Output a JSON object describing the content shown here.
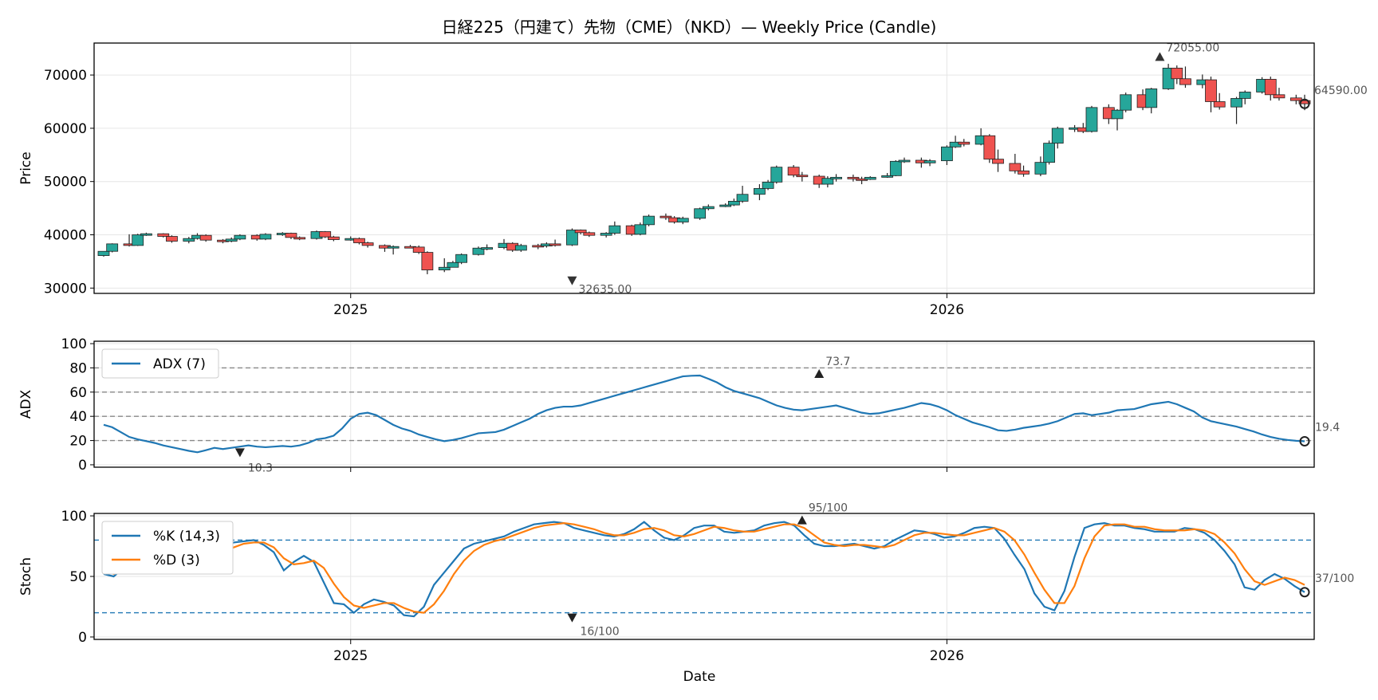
{
  "figure": {
    "title": "日経225（円建て）先物（CME）（NKD）— Weekly Price (Candle)",
    "xlabel": "Date",
    "colors": {
      "up": "#26a69a",
      "down": "#ef5350",
      "adx": "#1f77b4",
      "k": "#1f77b4",
      "d": "#ff7f0e",
      "grid": "#e6e6e6",
      "ref": "#888888"
    }
  },
  "chart_data": [
    {
      "type": "candlestick",
      "name": "price",
      "ylabel": "Price",
      "ylim": [
        29000,
        76000
      ],
      "yticks": [
        30000,
        40000,
        50000,
        60000,
        70000
      ],
      "x_ticks": [
        {
          "index": 29,
          "label": "2025"
        },
        {
          "index": 99,
          "label": "2026"
        }
      ],
      "annotations": {
        "high": {
          "index": 124,
          "value": 72055,
          "label": "72055.00"
        },
        "low": {
          "index": 55,
          "value": 32635,
          "label": "32635.00"
        },
        "last": {
          "index": 141,
          "value": 64590,
          "label": "64590.00"
        }
      },
      "close": [
        36214,
        36375,
        38200,
        38342,
        38285,
        40081,
        40169,
        40290,
        40219,
        40130,
        40077,
        40042,
        39849,
        39548,
        39409,
        38995,
        39108,
        39128,
        39068,
        39070,
        39210,
        39219,
        39275,
        39243,
        39184,
        39315,
        39415,
        39510,
        39611,
        39726,
        39845,
        39961,
        39844,
        39569,
        39293,
        38997,
        38712,
        38440,
        38179,
        37962,
        37813,
        37828,
        37979,
        38265,
        38603,
        38806,
        38754,
        38401,
        37864,
        37336,
        36910,
        36677,
        36614,
        36566,
        35913,
        34281,
        32635,
        34106,
        34749,
        35800,
        36845,
        37599,
        38041,
        38174,
        38102,
        38058,
        38193,
        38406,
        38551,
        38713,
        38933,
        39295,
        39727,
        40114,
        40398,
        40603,
        40800,
        41103,
        41547,
        42155,
        42835,
        43409,
        43754,
        43951,
        44130,
        44410,
        44836,
        45456,
        46159,
        46820,
        47480,
        48113,
        48881,
        49817,
        50707,
        51357,
        51628,
        51473,
        50944,
        50360,
        50021,
        49973,
        50135,
        50369,
        50625,
        50928,
        51281,
        51843,
        52537,
        53351,
        54249,
        54934,
        55430,
        55862,
        56413,
        57019,
        57466,
        57583,
        57312,
        56728,
        55910,
        55046,
        54344,
        53912,
        53718,
        53781,
        54051,
        54627,
        55550,
        56777,
        58039,
        59139,
        60188,
        61223,
        62294,
        63521,
        64891,
        66276,
        67651,
        69008,
        70363,
        71642,
        72055,
        71404,
        69980,
        68321,
        66909,
        65855,
        65176,
        64874,
        64895,
        65145,
        65473,
        65764,
        65907,
        65845,
        65542,
        65071,
        64590
      ],
      "candles": [
        [
          36.1,
          36.9,
          36.9,
          35.9
        ],
        [
          36.9,
          38.3,
          38.4,
          36.7
        ],
        [
          38.3,
          38.0,
          40.1,
          37.8
        ],
        [
          38.0,
          40.0,
          40.2,
          37.9
        ],
        [
          40.0,
          40.2,
          40.4,
          39.8
        ],
        [
          40.2,
          39.7,
          40.3,
          39.5
        ],
        [
          39.7,
          38.8,
          39.9,
          38.5
        ],
        [
          38.8,
          39.3,
          39.6,
          38.4
        ],
        [
          39.3,
          39.9,
          40.3,
          39.1
        ],
        [
          39.9,
          39.0,
          40.1,
          38.7
        ],
        [
          39.0,
          38.8,
          39.2,
          38.4
        ],
        [
          38.8,
          39.2,
          39.5,
          38.6
        ],
        [
          39.2,
          39.9,
          40.1,
          39.0
        ],
        [
          39.9,
          39.2,
          40.1,
          38.9
        ],
        [
          39.2,
          40.1,
          40.3,
          39.0
        ],
        [
          40.1,
          40.3,
          40.5,
          39.8
        ],
        [
          40.3,
          39.5,
          40.4,
          39.2
        ],
        [
          39.5,
          39.3,
          39.7,
          39.0
        ],
        [
          39.3,
          40.6,
          40.8,
          39.1
        ],
        [
          40.6,
          39.6,
          40.7,
          39.4
        ],
        [
          39.6,
          39.1,
          39.8,
          38.8
        ],
        [
          39.1,
          39.3,
          39.7,
          38.9
        ],
        [
          39.3,
          38.5,
          39.5,
          38.2
        ],
        [
          38.5,
          38.0,
          38.7,
          37.6
        ],
        [
          38.0,
          37.5,
          38.2,
          36.8
        ],
        [
          37.5,
          37.8,
          38.0,
          36.3
        ],
        [
          37.8,
          37.7,
          38.1,
          37.5
        ],
        [
          37.7,
          36.7,
          38.0,
          36.4
        ],
        [
          36.7,
          33.4,
          36.9,
          32.6
        ],
        [
          33.4,
          33.9,
          35.6,
          33.0
        ],
        [
          33.9,
          34.8,
          35.1,
          34.6
        ],
        [
          34.8,
          36.3,
          36.5,
          34.5
        ],
        [
          36.3,
          37.5,
          37.8,
          36.1
        ],
        [
          37.5,
          37.6,
          38.2,
          37.1
        ],
        [
          37.6,
          38.4,
          39.2,
          37.3
        ],
        [
          38.4,
          37.1,
          38.6,
          36.8
        ],
        [
          37.1,
          38.0,
          38.3,
          36.8
        ],
        [
          38.0,
          37.9,
          38.3,
          37.3
        ],
        [
          37.9,
          38.3,
          38.6,
          37.6
        ],
        [
          38.3,
          38.1,
          39.1,
          37.8
        ],
        [
          38.1,
          40.9,
          41.2,
          37.9
        ],
        [
          40.9,
          40.4,
          41.0,
          40.1
        ],
        [
          40.4,
          39.9,
          40.6,
          39.6
        ],
        [
          39.9,
          40.3,
          40.5,
          39.5
        ],
        [
          40.3,
          41.7,
          42.5,
          40.0
        ],
        [
          41.7,
          40.1,
          41.9,
          39.8
        ],
        [
          40.1,
          41.9,
          42.3,
          39.9
        ],
        [
          41.9,
          43.5,
          43.8,
          41.6
        ],
        [
          43.5,
          43.2,
          44.0,
          42.8
        ],
        [
          43.2,
          42.4,
          43.5,
          42.1
        ],
        [
          42.4,
          43.1,
          43.4,
          42.0
        ],
        [
          43.1,
          44.9,
          45.1,
          42.8
        ],
        [
          44.9,
          45.3,
          45.7,
          44.6
        ],
        [
          45.3,
          45.6,
          45.9,
          45.2
        ],
        [
          45.6,
          46.3,
          46.8,
          45.4
        ],
        [
          46.3,
          47.6,
          49.2,
          46.0
        ],
        [
          47.6,
          48.7,
          49.5,
          46.5
        ],
        [
          48.7,
          49.9,
          50.3,
          48.4
        ],
        [
          49.9,
          52.7,
          53.0,
          49.6
        ],
        [
          52.7,
          51.2,
          53.1,
          50.8
        ],
        [
          51.2,
          51.0,
          51.8,
          50.0
        ],
        [
          51.0,
          49.5,
          51.3,
          48.8
        ],
        [
          49.5,
          50.6,
          51.0,
          48.9
        ],
        [
          50.6,
          50.8,
          51.4,
          50.0
        ],
        [
          50.8,
          50.5,
          51.3,
          50.0
        ],
        [
          50.5,
          50.4,
          50.9,
          49.5
        ],
        [
          50.4,
          50.8,
          51.0,
          50.3
        ],
        [
          50.8,
          51.1,
          51.6,
          50.7
        ],
        [
          51.1,
          53.8,
          54.0,
          51.0
        ],
        [
          53.8,
          54.0,
          54.5,
          53.5
        ],
        [
          54.0,
          53.5,
          54.5,
          52.6
        ],
        [
          53.5,
          53.9,
          54.2,
          52.9
        ],
        [
          53.9,
          56.5,
          56.8,
          53.1
        ],
        [
          56.5,
          57.4,
          58.6,
          56.3
        ],
        [
          57.4,
          57.0,
          58.0,
          56.6
        ],
        [
          57.0,
          58.6,
          60.0,
          56.8
        ],
        [
          58.6,
          54.2,
          58.9,
          53.5
        ],
        [
          54.2,
          53.4,
          56.0,
          51.8
        ],
        [
          53.4,
          52.0,
          55.2,
          51.5
        ],
        [
          52.0,
          51.4,
          53.0,
          50.9
        ],
        [
          51.4,
          53.6,
          54.7,
          51.0
        ],
        [
          53.6,
          57.2,
          57.7,
          53.2
        ],
        [
          57.2,
          60.0,
          60.3,
          56.2
        ],
        [
          60.0,
          60.1,
          60.6,
          59.3
        ],
        [
          60.1,
          59.4,
          61.0,
          59.1
        ],
        [
          59.4,
          63.9,
          64.2,
          59.2
        ],
        [
          63.9,
          61.8,
          64.5,
          60.8
        ],
        [
          61.8,
          63.4,
          63.6,
          59.6
        ],
        [
          63.4,
          66.3,
          66.7,
          63.0
        ],
        [
          66.3,
          63.9,
          67.3,
          63.4
        ],
        [
          63.9,
          67.4,
          67.6,
          62.8
        ],
        [
          67.4,
          71.3,
          72.1,
          67.2
        ],
        [
          71.3,
          69.3,
          71.8,
          68.3
        ],
        [
          69.3,
          68.2,
          71.6,
          67.6
        ],
        [
          68.2,
          69.1,
          70.1,
          67.5
        ],
        [
          69.1,
          65.0,
          69.7,
          63.0
        ],
        [
          65.0,
          64.0,
          66.6,
          63.5
        ],
        [
          64.0,
          65.6,
          65.9,
          60.8
        ],
        [
          65.6,
          66.8,
          67.1,
          64.5
        ],
        [
          66.8,
          69.2,
          69.6,
          66.5
        ],
        [
          69.2,
          66.3,
          69.7,
          65.2
        ],
        [
          66.3,
          65.7,
          67.6,
          65.2
        ],
        [
          65.7,
          65.2,
          66.3,
          64.5
        ],
        [
          65.2,
          64.6,
          66.3,
          63.4
        ]
      ]
    },
    {
      "type": "line",
      "name": "adx",
      "ylabel": "ADX",
      "ylim": [
        -2,
        102
      ],
      "yticks": [
        0,
        20,
        40,
        60,
        80,
        100
      ],
      "reference_lines": [
        20,
        40,
        60,
        80
      ],
      "legend": [
        "ADX (7)"
      ],
      "annotations": {
        "max": {
          "index": 84,
          "value": 73.7,
          "label": "73.7"
        },
        "min": {
          "index": 16,
          "value": 10.3,
          "label": "10.3"
        },
        "last": {
          "index": 141,
          "value": 19.4,
          "label": "19.4"
        }
      },
      "values": [
        33,
        31,
        27,
        23,
        21,
        19.5,
        18,
        16,
        14.5,
        13,
        11.5,
        10.3,
        12,
        14,
        13,
        14,
        15,
        16,
        15,
        14.5,
        15,
        15.5,
        15,
        16,
        18,
        21,
        22,
        24,
        30,
        38,
        42,
        43,
        41,
        37,
        33,
        30,
        28,
        25,
        23,
        21,
        19.5,
        20.5,
        22,
        24,
        26,
        26.5,
        27,
        29,
        32,
        35,
        38,
        42,
        45,
        47,
        48,
        48,
        49,
        51,
        53,
        55,
        57,
        59,
        61,
        63,
        65,
        67,
        69,
        71,
        73,
        73.5,
        73.7,
        71,
        68,
        64,
        61,
        59,
        57,
        55,
        52,
        49,
        47,
        45.5,
        45,
        46,
        47,
        48,
        49,
        47,
        45,
        43,
        42,
        42.5,
        44,
        45.5,
        47,
        49,
        51,
        50,
        48,
        45,
        41,
        38,
        35,
        33,
        31,
        28.5,
        28,
        29,
        30.5,
        31.5,
        32.5,
        34,
        36,
        39,
        42,
        42.5,
        41,
        42,
        43,
        45,
        45.5,
        46,
        48,
        50,
        51,
        52,
        50,
        47,
        44,
        39,
        36,
        34.5,
        33,
        31.5,
        29.5,
        27.5,
        25,
        23,
        21.5,
        20.5,
        19.8,
        19.4
      ]
    },
    {
      "type": "line",
      "name": "stoch",
      "ylabel": "Stoch",
      "ylim": [
        -2,
        102
      ],
      "yticks": [
        0,
        50,
        100
      ],
      "reference_lines": [
        20,
        80
      ],
      "legend": [
        "%K (14,3)",
        "%D (3)"
      ],
      "annotations": {
        "max": {
          "index": 82,
          "value": 95,
          "label": "95/100"
        },
        "min": {
          "index": 55,
          "value": 16,
          "label": "16/100"
        },
        "last": {
          "index": 141,
          "value": 37,
          "label": "37/100"
        }
      },
      "series": [
        {
          "name": "%K (14,3)",
          "values": [
            52,
            50,
            57,
            66,
            72,
            75,
            74,
            73,
            70,
            68,
            62,
            70,
            75,
            78,
            79,
            80,
            76,
            70,
            55,
            62,
            67,
            62,
            45,
            28,
            27,
            20,
            27,
            31,
            29,
            26,
            18,
            17,
            25,
            43,
            53,
            63,
            73,
            77,
            79,
            81,
            83,
            87,
            90,
            93,
            94,
            95,
            94,
            90,
            88,
            86,
            84,
            83,
            85,
            89,
            95,
            88,
            82,
            80,
            84,
            90,
            92,
            92,
            87,
            86,
            87,
            88,
            92,
            94,
            95,
            92,
            84,
            77,
            75,
            75,
            76,
            77,
            75,
            73,
            75,
            80,
            84,
            88,
            87,
            85,
            82,
            83,
            86,
            90,
            91,
            90,
            81,
            68,
            56,
            36,
            25,
            22,
            38,
            66,
            90,
            93,
            94,
            92,
            92,
            90,
            89,
            87,
            87,
            87,
            90,
            89,
            86,
            80,
            71,
            60,
            41,
            39,
            47,
            52,
            48,
            42,
            37
          ]
        },
        {
          "name": "%D (3)",
          "values": [
            56,
            52,
            55,
            60,
            67,
            72,
            74,
            74,
            72,
            70,
            66,
            67,
            71,
            74,
            77,
            78,
            78,
            74,
            65,
            60,
            61,
            63,
            57,
            44,
            33,
            26,
            24,
            26,
            28,
            28,
            24,
            21,
            20,
            27,
            38,
            52,
            63,
            71,
            76,
            79,
            81,
            84,
            87,
            90,
            92,
            93,
            94,
            93,
            91,
            89,
            86,
            84,
            84,
            86,
            89,
            90,
            88,
            84,
            83,
            85,
            88,
            91,
            90,
            88,
            87,
            87,
            89,
            91,
            93,
            93,
            90,
            84,
            78,
            76,
            75,
            76,
            76,
            75,
            74,
            76,
            80,
            84,
            86,
            86,
            85,
            84,
            84,
            86,
            88,
            90,
            87,
            80,
            68,
            53,
            39,
            28,
            28,
            42,
            65,
            83,
            92,
            93,
            93,
            91,
            91,
            89,
            88,
            88,
            88,
            89,
            88,
            85,
            78,
            69,
            56,
            46,
            43,
            46,
            49,
            47,
            43
          ]
        }
      ]
    }
  ]
}
